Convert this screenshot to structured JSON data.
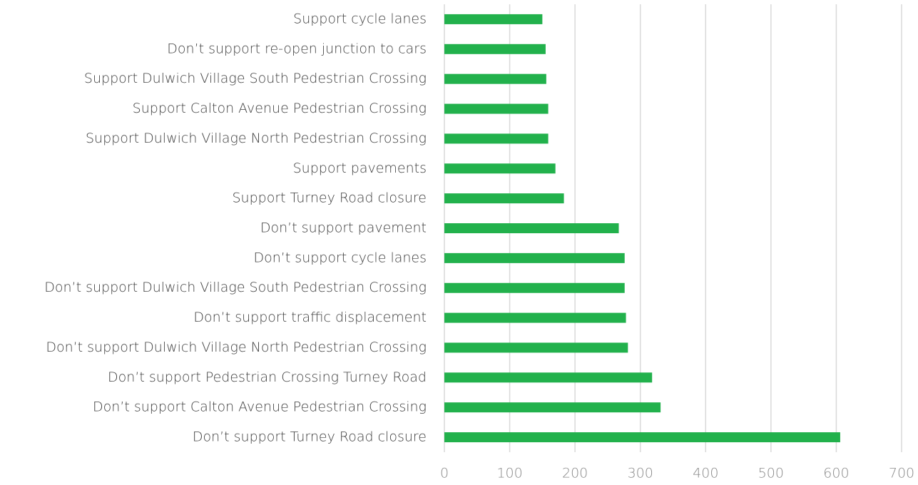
{
  "chart_data": {
    "type": "barh",
    "categories": [
      "Support cycle lanes",
      "Don’t support re-open junction to cars",
      "Support Dulwich Village South Pedestrian Crossing",
      "Support Calton Avenue Pedestrian Crossing",
      "Support Dulwich Village North Pedestrian Crossing",
      "Support pavements",
      "Support Turney Road closure",
      "Don’t support pavement",
      "Don’t support cycle lanes",
      "Don’t support Dulwich Village South Pedestrian Crossing",
      "Don’t support traffic displacement",
      "Don’t support Dulwich Village North Pedestrian Crossing",
      "Don’t support Pedestrian Crossing Turney Road",
      "Don’t support Calton Avenue Pedestrian Crossing",
      "Don’t support Turney Road closure"
    ],
    "values": [
      150,
      155,
      156,
      159,
      159,
      170,
      183,
      267,
      276,
      276,
      278,
      281,
      318,
      331,
      606
    ],
    "color": "#22b14c",
    "xlim": [
      0,
      700
    ],
    "xticks": [
      0,
      100,
      200,
      300,
      400,
      500,
      600,
      700
    ],
    "grid": true
  }
}
